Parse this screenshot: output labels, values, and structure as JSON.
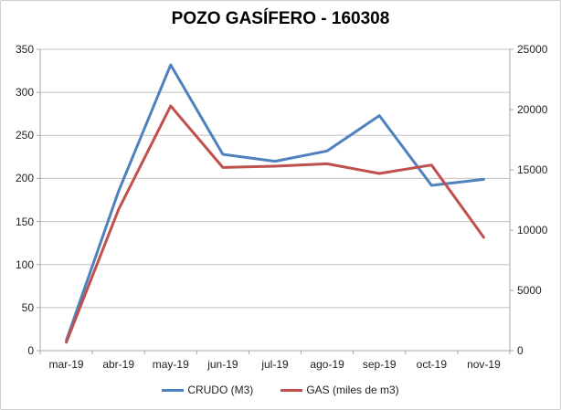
{
  "chart": {
    "title": "POZO GASÍFERO - 160308",
    "legend": [
      {
        "label": "CRUDO (M3)",
        "color": "#4F81BD"
      },
      {
        "label": "GAS (miles de m3)",
        "color": "#C0504D"
      }
    ],
    "colors": {
      "gridline": "#c0c0c0",
      "axis_line": "#a6a6a6",
      "tick_label": "#1f1f1f",
      "background": "#ffffff",
      "border": "#d0d0d0"
    }
  },
  "chart_data": {
    "type": "line",
    "title": "POZO GASÍFERO - 160308",
    "categories": [
      "mar-19",
      "abr-19",
      "may-19",
      "jun-19",
      "jul-19",
      "ago-19",
      "sep-19",
      "oct-19",
      "nov-19"
    ],
    "series": [
      {
        "name": "CRUDO (M3)",
        "axis": "left",
        "color": "#4F81BD",
        "values": [
          12,
          185,
          332,
          228,
          220,
          232,
          273,
          192,
          199
        ]
      },
      {
        "name": "GAS (miles de m3)",
        "axis": "right",
        "color": "#C0504D",
        "values": [
          700,
          11700,
          20300,
          15200,
          15300,
          15500,
          14700,
          15400,
          9400
        ]
      }
    ],
    "left_axis": {
      "min": 0,
      "max": 350,
      "step": 50,
      "ticks": [
        350,
        300,
        250,
        200,
        150,
        100,
        50,
        0
      ]
    },
    "right_axis": {
      "min": 0,
      "max": 25000,
      "step": 5000,
      "ticks": [
        25000,
        20000,
        15000,
        10000,
        5000,
        0
      ]
    },
    "grid": true,
    "legend_position": "bottom"
  }
}
